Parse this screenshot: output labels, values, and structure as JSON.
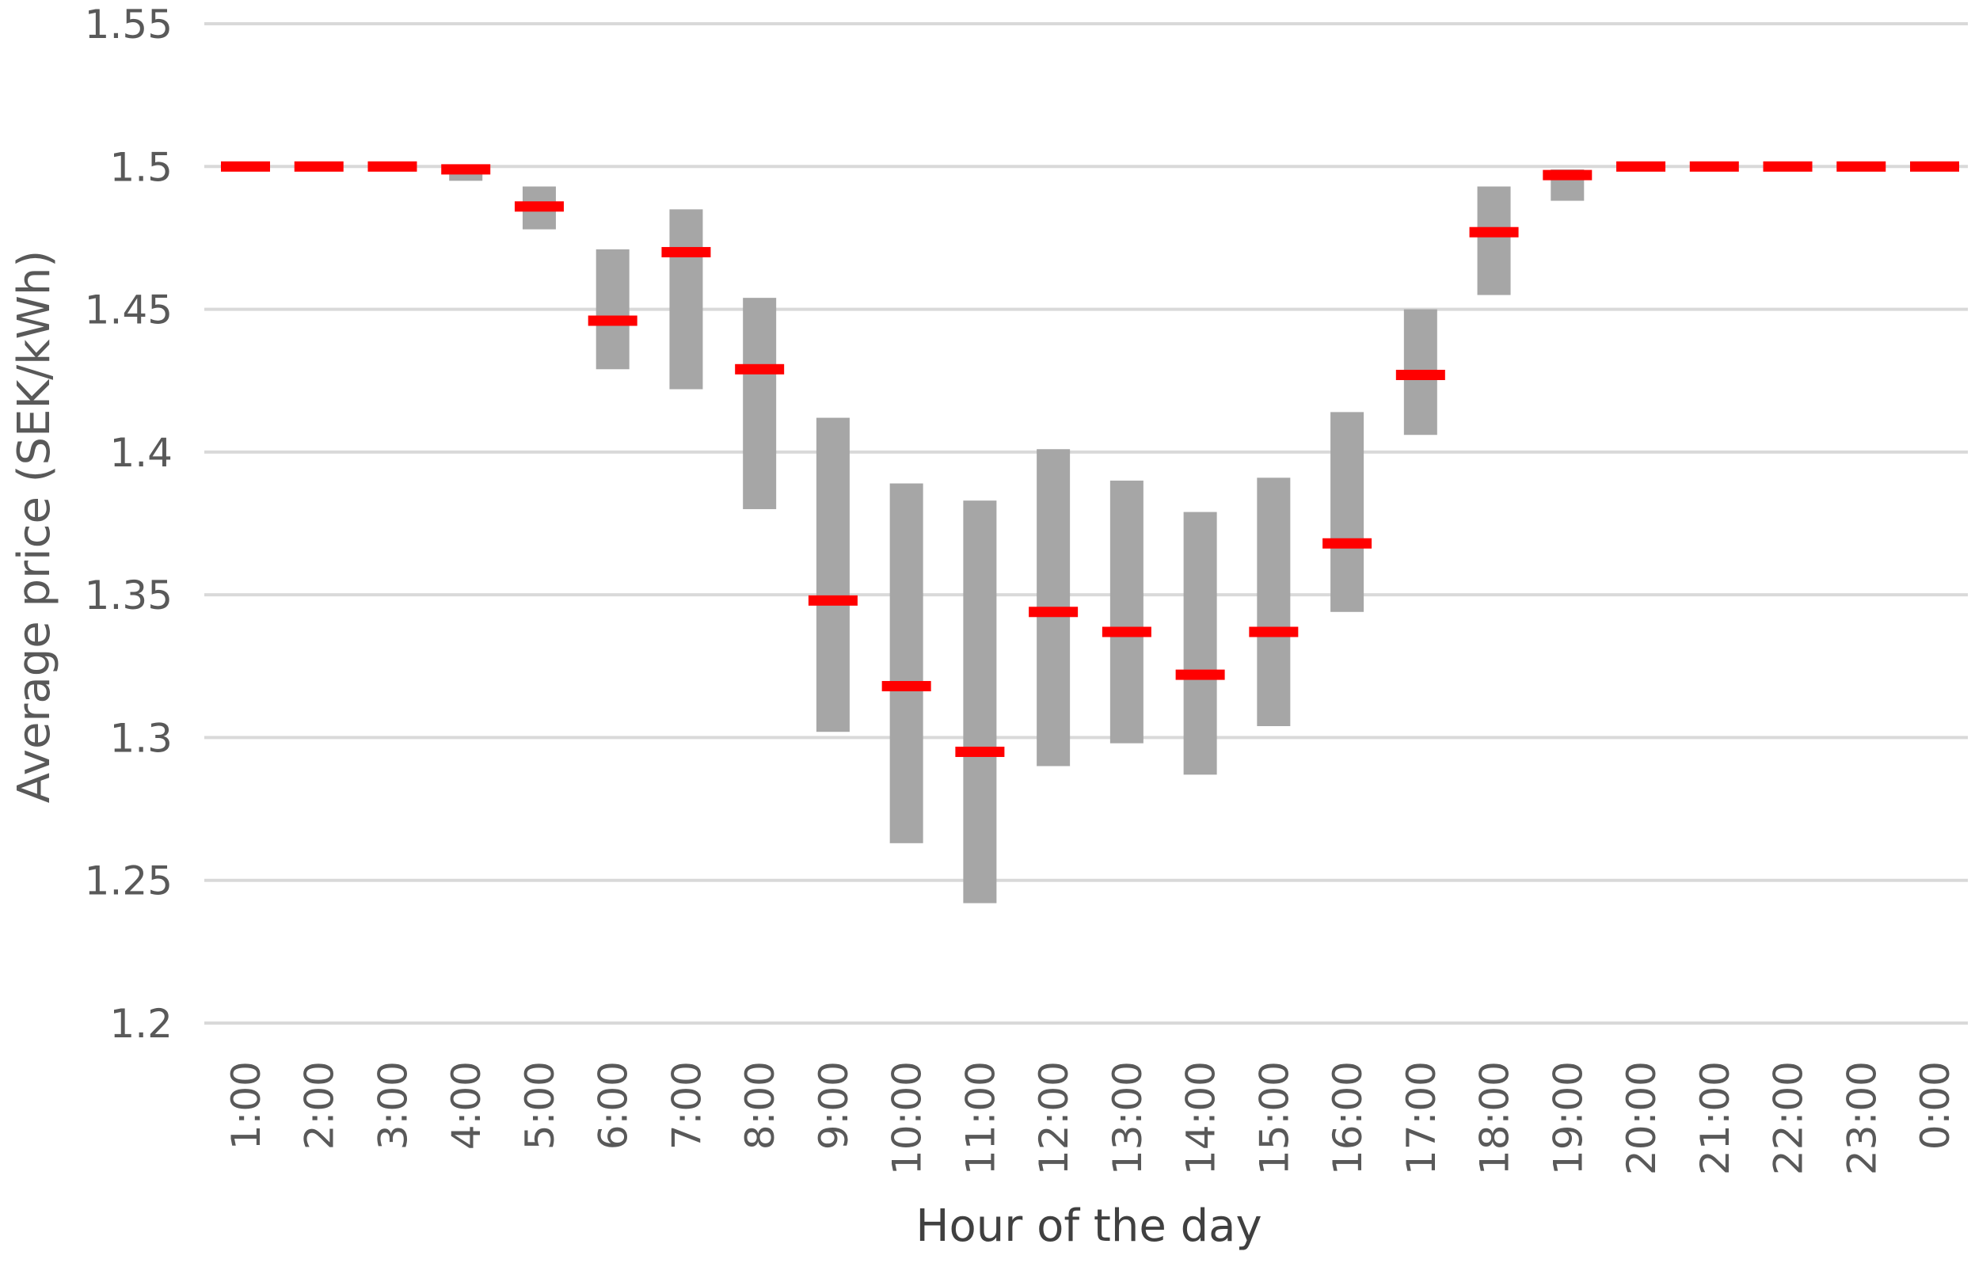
{
  "chart_data": {
    "type": "bar",
    "title": "",
    "xlabel": "Hour of the day",
    "ylabel": "Average price (SEK/kWh)",
    "ylim": [
      1.2,
      1.55
    ],
    "yticks": [
      "1.2",
      "1.25",
      "1.3",
      "1.35",
      "1.4",
      "1.45",
      "1.5",
      "1.55"
    ],
    "grid": true,
    "legend": "none",
    "categories": [
      "1:00",
      "2:00",
      "3:00",
      "4:00",
      "5:00",
      "6:00",
      "7:00",
      "8:00",
      "9:00",
      "10:00",
      "11:00",
      "12:00",
      "13:00",
      "14:00",
      "15:00",
      "16:00",
      "17:00",
      "18:00",
      "19:00",
      "20:00",
      "21:00",
      "22:00",
      "23:00",
      "0:00"
    ],
    "series": [
      {
        "role": "range",
        "low": [
          1.5,
          1.5,
          1.5,
          1.495,
          1.478,
          1.429,
          1.422,
          1.38,
          1.302,
          1.263,
          1.242,
          1.29,
          1.298,
          1.287,
          1.304,
          1.344,
          1.406,
          1.455,
          1.488,
          1.5,
          1.5,
          1.5,
          1.5,
          1.5
        ],
        "high": [
          1.5,
          1.5,
          1.5,
          1.5,
          1.493,
          1.471,
          1.485,
          1.454,
          1.412,
          1.389,
          1.383,
          1.401,
          1.39,
          1.379,
          1.391,
          1.414,
          1.45,
          1.493,
          1.499,
          1.5,
          1.5,
          1.5,
          1.5,
          1.5
        ],
        "color": "#a6a6a6"
      },
      {
        "role": "average",
        "values": [
          1.5,
          1.5,
          1.5,
          1.499,
          1.486,
          1.446,
          1.47,
          1.429,
          1.348,
          1.318,
          1.295,
          1.344,
          1.337,
          1.322,
          1.337,
          1.368,
          1.427,
          1.477,
          1.497,
          1.5,
          1.5,
          1.5,
          1.5,
          1.5
        ],
        "color": "#ff0000"
      }
    ]
  }
}
